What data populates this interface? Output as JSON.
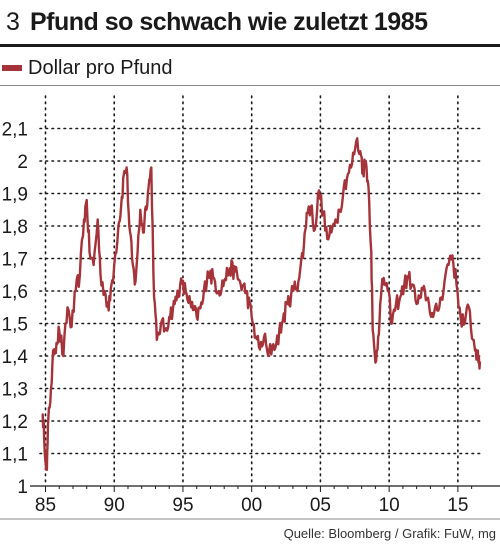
{
  "figure_number": "3",
  "title": "Pfund so schwach wie zuletzt 1985",
  "source": "Quelle: Bloomberg / Grafik: FuW, mg",
  "colors": {
    "series": "#a4333a",
    "grid": "#1a1a1a",
    "axis": "#1a1a1a"
  },
  "chart_data": {
    "type": "line",
    "title": "Pfund so schwach wie zuletzt 1985",
    "xlabel": "",
    "ylabel": "",
    "xlim": [
      1984.6,
      2016.9
    ],
    "ylim": [
      1.0,
      2.2
    ],
    "x_ticks": [
      1985,
      1990,
      1995,
      2000,
      2005,
      2010,
      2015
    ],
    "x_tick_labels": [
      "85",
      "90",
      "95",
      "00",
      "05",
      "10",
      "15"
    ],
    "y_ticks": [
      1.0,
      1.1,
      1.2,
      1.3,
      1.4,
      1.5,
      1.6,
      1.7,
      1.8,
      1.9,
      2.0,
      2.1
    ],
    "y_tick_labels": [
      "1",
      "1,1",
      "1,2",
      "1,3",
      "1,4",
      "1,5",
      "1,6",
      "1,7",
      "1,8",
      "1,9",
      "2",
      "2,1"
    ],
    "grid": true,
    "legend": {
      "position": "top-left"
    },
    "series": [
      {
        "name": "Dollar pro Pfund",
        "x": [
          1984.8,
          1984.9,
          1985.1,
          1985.2,
          1985.4,
          1985.6,
          1985.8,
          1986.0,
          1986.3,
          1986.6,
          1986.9,
          1987.2,
          1987.5,
          1987.8,
          1988.0,
          1988.2,
          1988.5,
          1988.8,
          1989.0,
          1989.3,
          1989.6,
          1989.8,
          1990.0,
          1990.3,
          1990.5,
          1990.7,
          1990.9,
          1991.1,
          1991.3,
          1991.5,
          1991.7,
          1991.9,
          1992.1,
          1992.3,
          1992.5,
          1992.7,
          1992.9,
          1993.1,
          1993.4,
          1993.7,
          1994.0,
          1994.4,
          1994.8,
          1995.2,
          1995.6,
          1996.0,
          1996.4,
          1996.8,
          1997.2,
          1997.6,
          1998.0,
          1998.4,
          1998.8,
          1999.2,
          1999.6,
          2000.0,
          2000.3,
          2000.6,
          2000.9,
          2001.2,
          2001.5,
          2001.8,
          2002.2,
          2002.6,
          2003.0,
          2003.4,
          2003.8,
          2004.0,
          2004.3,
          2004.6,
          2004.9,
          2005.2,
          2005.5,
          2005.8,
          2006.1,
          2006.4,
          2006.7,
          2007.0,
          2007.3,
          2007.6,
          2007.9,
          2008.1,
          2008.3,
          2008.5,
          2008.7,
          2008.8,
          2009.0,
          2009.2,
          2009.4,
          2009.6,
          2009.9,
          2010.2,
          2010.5,
          2010.8,
          2011.1,
          2011.4,
          2011.7,
          2012.0,
          2012.3,
          2012.6,
          2012.9,
          2013.2,
          2013.5,
          2013.8,
          2014.1,
          2014.4,
          2014.6,
          2014.9,
          2015.2,
          2015.5,
          2015.8,
          2016.1,
          2016.3,
          2016.5,
          2016.6
        ],
        "y": [
          1.22,
          1.15,
          1.05,
          1.2,
          1.3,
          1.42,
          1.44,
          1.48,
          1.4,
          1.55,
          1.49,
          1.6,
          1.65,
          1.82,
          1.88,
          1.72,
          1.68,
          1.82,
          1.65,
          1.6,
          1.54,
          1.62,
          1.68,
          1.8,
          1.86,
          1.96,
          1.98,
          1.8,
          1.7,
          1.62,
          1.72,
          1.85,
          1.78,
          1.86,
          1.92,
          1.98,
          1.58,
          1.45,
          1.5,
          1.48,
          1.52,
          1.56,
          1.62,
          1.6,
          1.55,
          1.52,
          1.56,
          1.66,
          1.64,
          1.6,
          1.63,
          1.67,
          1.66,
          1.62,
          1.6,
          1.52,
          1.46,
          1.42,
          1.46,
          1.4,
          1.43,
          1.44,
          1.5,
          1.56,
          1.6,
          1.63,
          1.74,
          1.84,
          1.86,
          1.79,
          1.91,
          1.84,
          1.76,
          1.78,
          1.82,
          1.85,
          1.92,
          1.96,
          1.99,
          2.06,
          2.03,
          1.97,
          2.0,
          1.92,
          1.72,
          1.48,
          1.38,
          1.46,
          1.58,
          1.64,
          1.6,
          1.5,
          1.56,
          1.58,
          1.62,
          1.64,
          1.62,
          1.56,
          1.58,
          1.6,
          1.56,
          1.52,
          1.54,
          1.58,
          1.65,
          1.7,
          1.71,
          1.62,
          1.52,
          1.5,
          1.55,
          1.45,
          1.42,
          1.38,
          1.38
        ]
      }
    ]
  }
}
